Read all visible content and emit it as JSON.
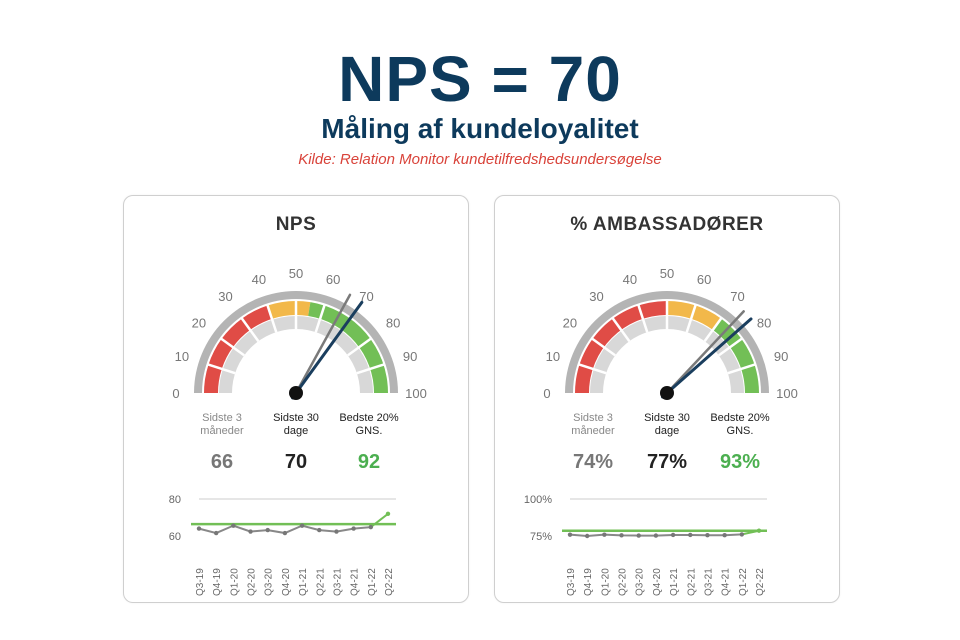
{
  "header": {
    "title": "NPS = 70",
    "subtitle": "Måling af kundeloyalitet",
    "source": "Kilde: Relation Monitor kundetilfredshedsundersøgelse"
  },
  "colors": {
    "navy": "#0d3a5c",
    "red": "#e04c46",
    "yellow": "#f2b84a",
    "green": "#72bf56",
    "light_gray": "#d8d8d8",
    "gray_outer": "#b4b4b4",
    "source_red": "#d9433a",
    "needle_gray": "#7a7a7a",
    "needle_navy": "#1a3e5e"
  },
  "cards": [
    {
      "title": "NPS",
      "gauge": {
        "tick_labels": [
          "0",
          "10",
          "20",
          "30",
          "40",
          "50",
          "60",
          "70",
          "80",
          "90",
          "100"
        ],
        "min": 0,
        "max": 100,
        "zones": [
          {
            "from": 0,
            "to": 40,
            "color": "red"
          },
          {
            "from": 40,
            "to": 55,
            "color": "yellow"
          },
          {
            "from": 55,
            "to": 100,
            "color": "green"
          }
        ],
        "needle_last3": 66,
        "needle_last30": 70
      },
      "stats": [
        {
          "label": "Sidste 3\nmåneder",
          "value": "66",
          "color": "#777777",
          "label_color": "#888888"
        },
        {
          "label": "Sidste 30\ndage",
          "value": "70",
          "color": "#222222",
          "label_color": "#222222"
        },
        {
          "label": "Bedste 20%\nGNS.",
          "value": "92",
          "color": "#4caf50",
          "label_color": "#222222"
        }
      ],
      "chart_data": {
        "type": "line",
        "categories": [
          "Q3-19",
          "Q4-19",
          "Q1-20",
          "Q2-20",
          "Q3-20",
          "Q4-20",
          "Q1-21",
          "Q2-21",
          "Q3-21",
          "Q4-21",
          "Q1-22",
          "Q2-22"
        ],
        "y_tick_labels": [
          "80",
          "60"
        ],
        "ylim": [
          55,
          80
        ],
        "series": [
          {
            "values": [
              60,
              57,
              62,
              58,
              59,
              57,
              62,
              59,
              58,
              60,
              61,
              70
            ]
          }
        ],
        "reference_line": 63
      }
    },
    {
      "title": "% AMBASSADØRER",
      "gauge": {
        "tick_labels": [
          "0",
          "10",
          "20",
          "30",
          "40",
          "50",
          "60",
          "70",
          "80",
          "90",
          "100"
        ],
        "min": 0,
        "max": 100,
        "zones": [
          {
            "from": 0,
            "to": 50,
            "color": "red"
          },
          {
            "from": 50,
            "to": 70,
            "color": "yellow"
          },
          {
            "from": 70,
            "to": 100,
            "color": "green"
          }
        ],
        "needle_last3": 74,
        "needle_last30": 77
      },
      "stats": [
        {
          "label": "Sidste 3\nmåneder",
          "value": "74%",
          "color": "#777777",
          "label_color": "#888888"
        },
        {
          "label": "Sidste 30\ndage",
          "value": "77%",
          "color": "#222222",
          "label_color": "#222222"
        },
        {
          "label": "Bedste 20%\nGNS.",
          "value": "93%",
          "color": "#4caf50",
          "label_color": "#222222"
        }
      ],
      "chart_data": {
        "type": "line",
        "categories": [
          "Q3-19",
          "Q4-19",
          "Q1-20",
          "Q2-20",
          "Q3-20",
          "Q4-20",
          "Q1-21",
          "Q2-21",
          "Q3-21",
          "Q4-21",
          "Q1-22",
          "Q2-22"
        ],
        "y_tick_labels": [
          "100%",
          "75%"
        ],
        "ylim": [
          72,
          100
        ],
        "series": [
          {
            "values": [
              73,
              72,
              73,
              72.5,
              72.3,
              72.3,
              72.8,
              72.8,
              72.6,
              72.6,
              73.2,
              76
            ]
          }
        ],
        "reference_line": 76
      }
    }
  ]
}
